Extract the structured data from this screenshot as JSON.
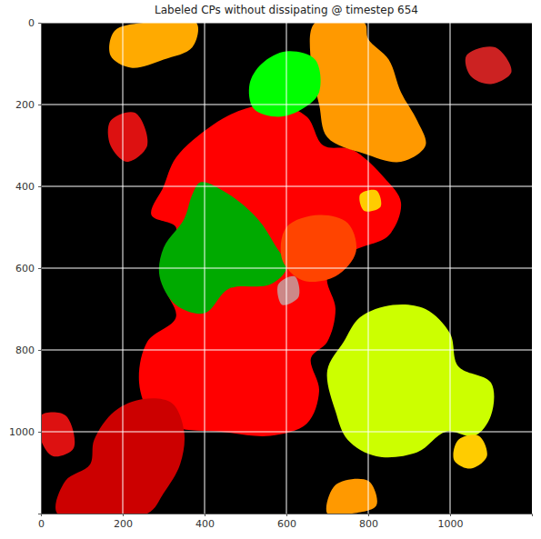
{
  "chart_data": {
    "type": "image",
    "title": "Labeled CPs without dissipating @ timestep 654",
    "xlim": [
      0,
      1200
    ],
    "ylim": [
      1200,
      0
    ],
    "xticks": [
      0,
      200,
      400,
      600,
      800,
      1000
    ],
    "yticks": [
      0,
      200,
      400,
      600,
      800,
      1000
    ],
    "grid": true,
    "background": "#000000",
    "regions": [
      {
        "color": "#ff0000",
        "points": [
          [
            330,
            330
          ],
          [
            420,
            250
          ],
          [
            500,
            210
          ],
          [
            580,
            200
          ],
          [
            650,
            230
          ],
          [
            690,
            300
          ],
          [
            760,
            310
          ],
          [
            840,
            380
          ],
          [
            880,
            440
          ],
          [
            850,
            520
          ],
          [
            760,
            560
          ],
          [
            700,
            620
          ],
          [
            720,
            700
          ],
          [
            700,
            780
          ],
          [
            660,
            820
          ],
          [
            680,
            900
          ],
          [
            650,
            980
          ],
          [
            560,
            1010
          ],
          [
            440,
            1000
          ],
          [
            330,
            990
          ],
          [
            270,
            960
          ],
          [
            240,
            880
          ],
          [
            260,
            780
          ],
          [
            330,
            720
          ],
          [
            300,
            640
          ],
          [
            310,
            560
          ],
          [
            330,
            500
          ],
          [
            270,
            470
          ],
          [
            300,
            400
          ]
        ]
      },
      {
        "color": "#ff9900",
        "points": [
          [
            670,
            0
          ],
          [
            790,
            0
          ],
          [
            800,
            40
          ],
          [
            850,
            90
          ],
          [
            880,
            170
          ],
          [
            920,
            240
          ],
          [
            940,
            300
          ],
          [
            880,
            340
          ],
          [
            790,
            320
          ],
          [
            700,
            280
          ],
          [
            680,
            200
          ],
          [
            660,
            100
          ]
        ]
      },
      {
        "color": "#00ff00",
        "points": [
          [
            540,
            100
          ],
          [
            600,
            70
          ],
          [
            670,
            90
          ],
          [
            680,
            170
          ],
          [
            640,
            210
          ],
          [
            580,
            230
          ],
          [
            520,
            210
          ],
          [
            510,
            150
          ]
        ]
      },
      {
        "color": "#00aa00",
        "points": [
          [
            390,
            390
          ],
          [
            460,
            420
          ],
          [
            530,
            480
          ],
          [
            570,
            540
          ],
          [
            600,
            600
          ],
          [
            560,
            640
          ],
          [
            460,
            650
          ],
          [
            400,
            710
          ],
          [
            330,
            690
          ],
          [
            290,
            620
          ],
          [
            300,
            550
          ],
          [
            350,
            480
          ],
          [
            370,
            420
          ]
        ]
      },
      {
        "color": "#ccff00",
        "points": [
          [
            780,
            720
          ],
          [
            860,
            690
          ],
          [
            940,
            700
          ],
          [
            1000,
            760
          ],
          [
            1020,
            840
          ],
          [
            1100,
            880
          ],
          [
            1100,
            960
          ],
          [
            1060,
            1010
          ],
          [
            990,
            1000
          ],
          [
            920,
            1050
          ],
          [
            820,
            1060
          ],
          [
            750,
            1020
          ],
          [
            720,
            950
          ],
          [
            700,
            850
          ],
          [
            740,
            780
          ]
        ]
      },
      {
        "color": "#cc0000",
        "points": [
          [
            180,
            950
          ],
          [
            250,
            920
          ],
          [
            320,
            930
          ],
          [
            350,
            1000
          ],
          [
            340,
            1080
          ],
          [
            300,
            1150
          ],
          [
            260,
            1200
          ],
          [
            40,
            1200
          ],
          [
            60,
            1120
          ],
          [
            120,
            1080
          ],
          [
            130,
            1020
          ]
        ]
      },
      {
        "color": "#ff4400",
        "points": [
          [
            600,
            500
          ],
          [
            680,
            470
          ],
          [
            750,
            490
          ],
          [
            770,
            560
          ],
          [
            720,
            620
          ],
          [
            640,
            630
          ],
          [
            590,
            580
          ]
        ]
      },
      {
        "color": "#ffaa00",
        "points": [
          [
            180,
            20
          ],
          [
            250,
            0
          ],
          [
            380,
            0
          ],
          [
            370,
            60
          ],
          [
            300,
            90
          ],
          [
            220,
            110
          ],
          [
            170,
            80
          ]
        ]
      },
      {
        "color": "#dd1111",
        "points": [
          [
            170,
            240
          ],
          [
            230,
            220
          ],
          [
            260,
            300
          ],
          [
            210,
            340
          ],
          [
            170,
            300
          ]
        ]
      },
      {
        "color": "#dd1111",
        "points": [
          [
            0,
            960
          ],
          [
            60,
            960
          ],
          [
            80,
            1040
          ],
          [
            30,
            1060
          ],
          [
            0,
            1020
          ]
        ]
      },
      {
        "color": "#cc2222",
        "points": [
          [
            1040,
            80
          ],
          [
            1110,
            60
          ],
          [
            1150,
            120
          ],
          [
            1100,
            150
          ],
          [
            1050,
            130
          ]
        ]
      },
      {
        "color": "#ff9900",
        "points": [
          [
            720,
            1130
          ],
          [
            800,
            1120
          ],
          [
            820,
            1180
          ],
          [
            760,
            1200
          ],
          [
            700,
            1200
          ]
        ]
      },
      {
        "color": "#ffcc00",
        "points": [
          [
            1020,
            1020
          ],
          [
            1070,
            1010
          ],
          [
            1090,
            1060
          ],
          [
            1050,
            1090
          ],
          [
            1010,
            1070
          ]
        ]
      },
      {
        "color": "#cc8888",
        "points": [
          [
            580,
            640
          ],
          [
            620,
            620
          ],
          [
            630,
            670
          ],
          [
            590,
            690
          ]
        ]
      },
      {
        "color": "#ffcc00",
        "points": [
          [
            780,
            420
          ],
          [
            820,
            410
          ],
          [
            830,
            450
          ],
          [
            790,
            460
          ]
        ]
      }
    ]
  }
}
